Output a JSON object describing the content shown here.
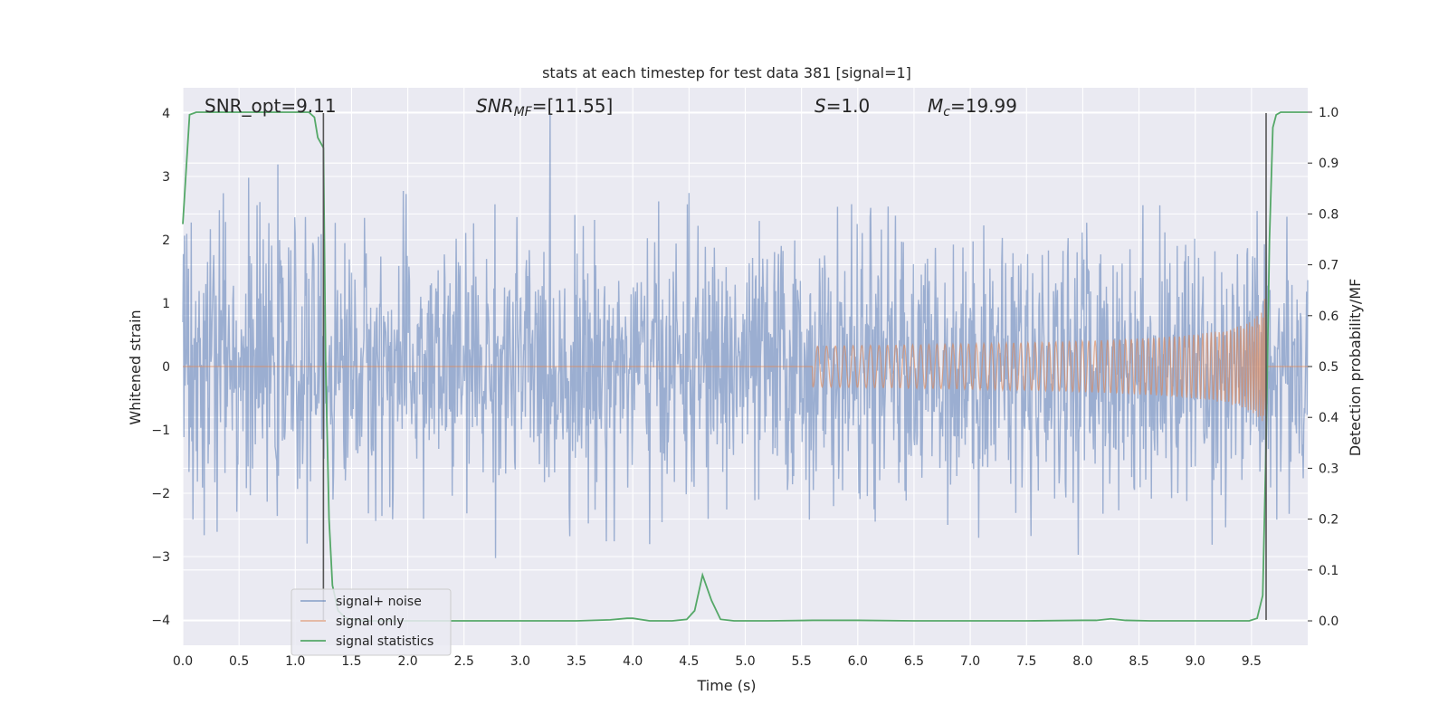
{
  "chart_data": {
    "type": "line",
    "title": "stats at each timestep for test data 381 [signal=1]",
    "xlabel": "Time (s)",
    "ylabel_left": "Whitened strain",
    "ylabel_right": "Detection probability/MF",
    "xlim": [
      0.0,
      10.0
    ],
    "ylim_left": [
      -4.4,
      4.4
    ],
    "ylim_right": [
      -0.048,
      1.048
    ],
    "x_ticks": [
      "0.0",
      "0.5",
      "1.0",
      "1.5",
      "2.0",
      "2.5",
      "3.0",
      "3.5",
      "4.0",
      "4.5",
      "5.0",
      "5.5",
      "6.0",
      "6.5",
      "7.0",
      "7.5",
      "8.0",
      "8.5",
      "9.0",
      "9.5"
    ],
    "y_ticks_left": [
      "−4",
      "−3",
      "−2",
      "−1",
      "0",
      "1",
      "2",
      "3",
      "4"
    ],
    "y_ticks_right": [
      "0.0",
      "0.1",
      "0.2",
      "0.3",
      "0.4",
      "0.5",
      "0.6",
      "0.7",
      "0.8",
      "0.9",
      "1.0"
    ],
    "annotations": {
      "snr_opt": "SNR_opt=9.11",
      "snr_mf_sym": "SNR",
      "snr_mf_sub": "MF",
      "snr_mf_val": "=[11.55]",
      "s_sym": "S",
      "s_val": "=1.0",
      "mc_sym": "M",
      "mc_sub": "c",
      "mc_val": "=19.99"
    },
    "legend": {
      "position": "lower-left",
      "entries": [
        "signal+ noise",
        "signal only",
        "signal statistics"
      ]
    },
    "vertical_markers": [
      1.25,
      9.63
    ],
    "series": [
      {
        "name": "signal+ noise",
        "axis": "left",
        "color": "#4c72b0",
        "kind": "dense-noise",
        "noise_std": 1.0,
        "clip": [
          -4.0,
          4.0
        ],
        "points": 2000
      },
      {
        "name": "signal only",
        "axis": "left",
        "color": "#dd8452",
        "kind": "chirp",
        "start_time": 5.6,
        "merger_time": 9.63,
        "peak_amplitude": 1.35
      },
      {
        "name": "signal statistics",
        "axis": "right",
        "color": "#55a868",
        "x": [
          0.0,
          0.06,
          0.12,
          0.25,
          0.5,
          0.75,
          1.0,
          1.12,
          1.17,
          1.2,
          1.25,
          1.27,
          1.3,
          1.33,
          1.38,
          1.45,
          1.6,
          2.0,
          2.5,
          3.0,
          3.5,
          3.8,
          3.95,
          4.0,
          4.15,
          4.35,
          4.48,
          4.55,
          4.62,
          4.7,
          4.78,
          4.9,
          5.2,
          5.6,
          6.0,
          6.5,
          7.0,
          7.5,
          8.0,
          8.12,
          8.25,
          8.38,
          8.6,
          9.0,
          9.4,
          9.48,
          9.55,
          9.6,
          9.63,
          9.66,
          9.69,
          9.72,
          9.76,
          9.83,
          10.0
        ],
        "y": [
          0.78,
          0.995,
          1.0,
          1.0,
          1.0,
          1.0,
          1.0,
          1.0,
          0.99,
          0.95,
          0.93,
          0.5,
          0.2,
          0.07,
          0.02,
          0.005,
          0.0,
          0.0,
          0.0,
          0.0,
          0.0,
          0.002,
          0.005,
          0.005,
          0.0,
          0.0,
          0.003,
          0.02,
          0.09,
          0.04,
          0.003,
          0.0,
          0.0,
          0.001,
          0.001,
          0.0,
          0.0,
          0.0,
          0.001,
          0.001,
          0.004,
          0.001,
          0.0,
          0.0,
          0.0,
          0.0,
          0.005,
          0.05,
          0.35,
          0.75,
          0.97,
          0.995,
          1.0,
          1.0,
          1.0
        ]
      }
    ]
  }
}
